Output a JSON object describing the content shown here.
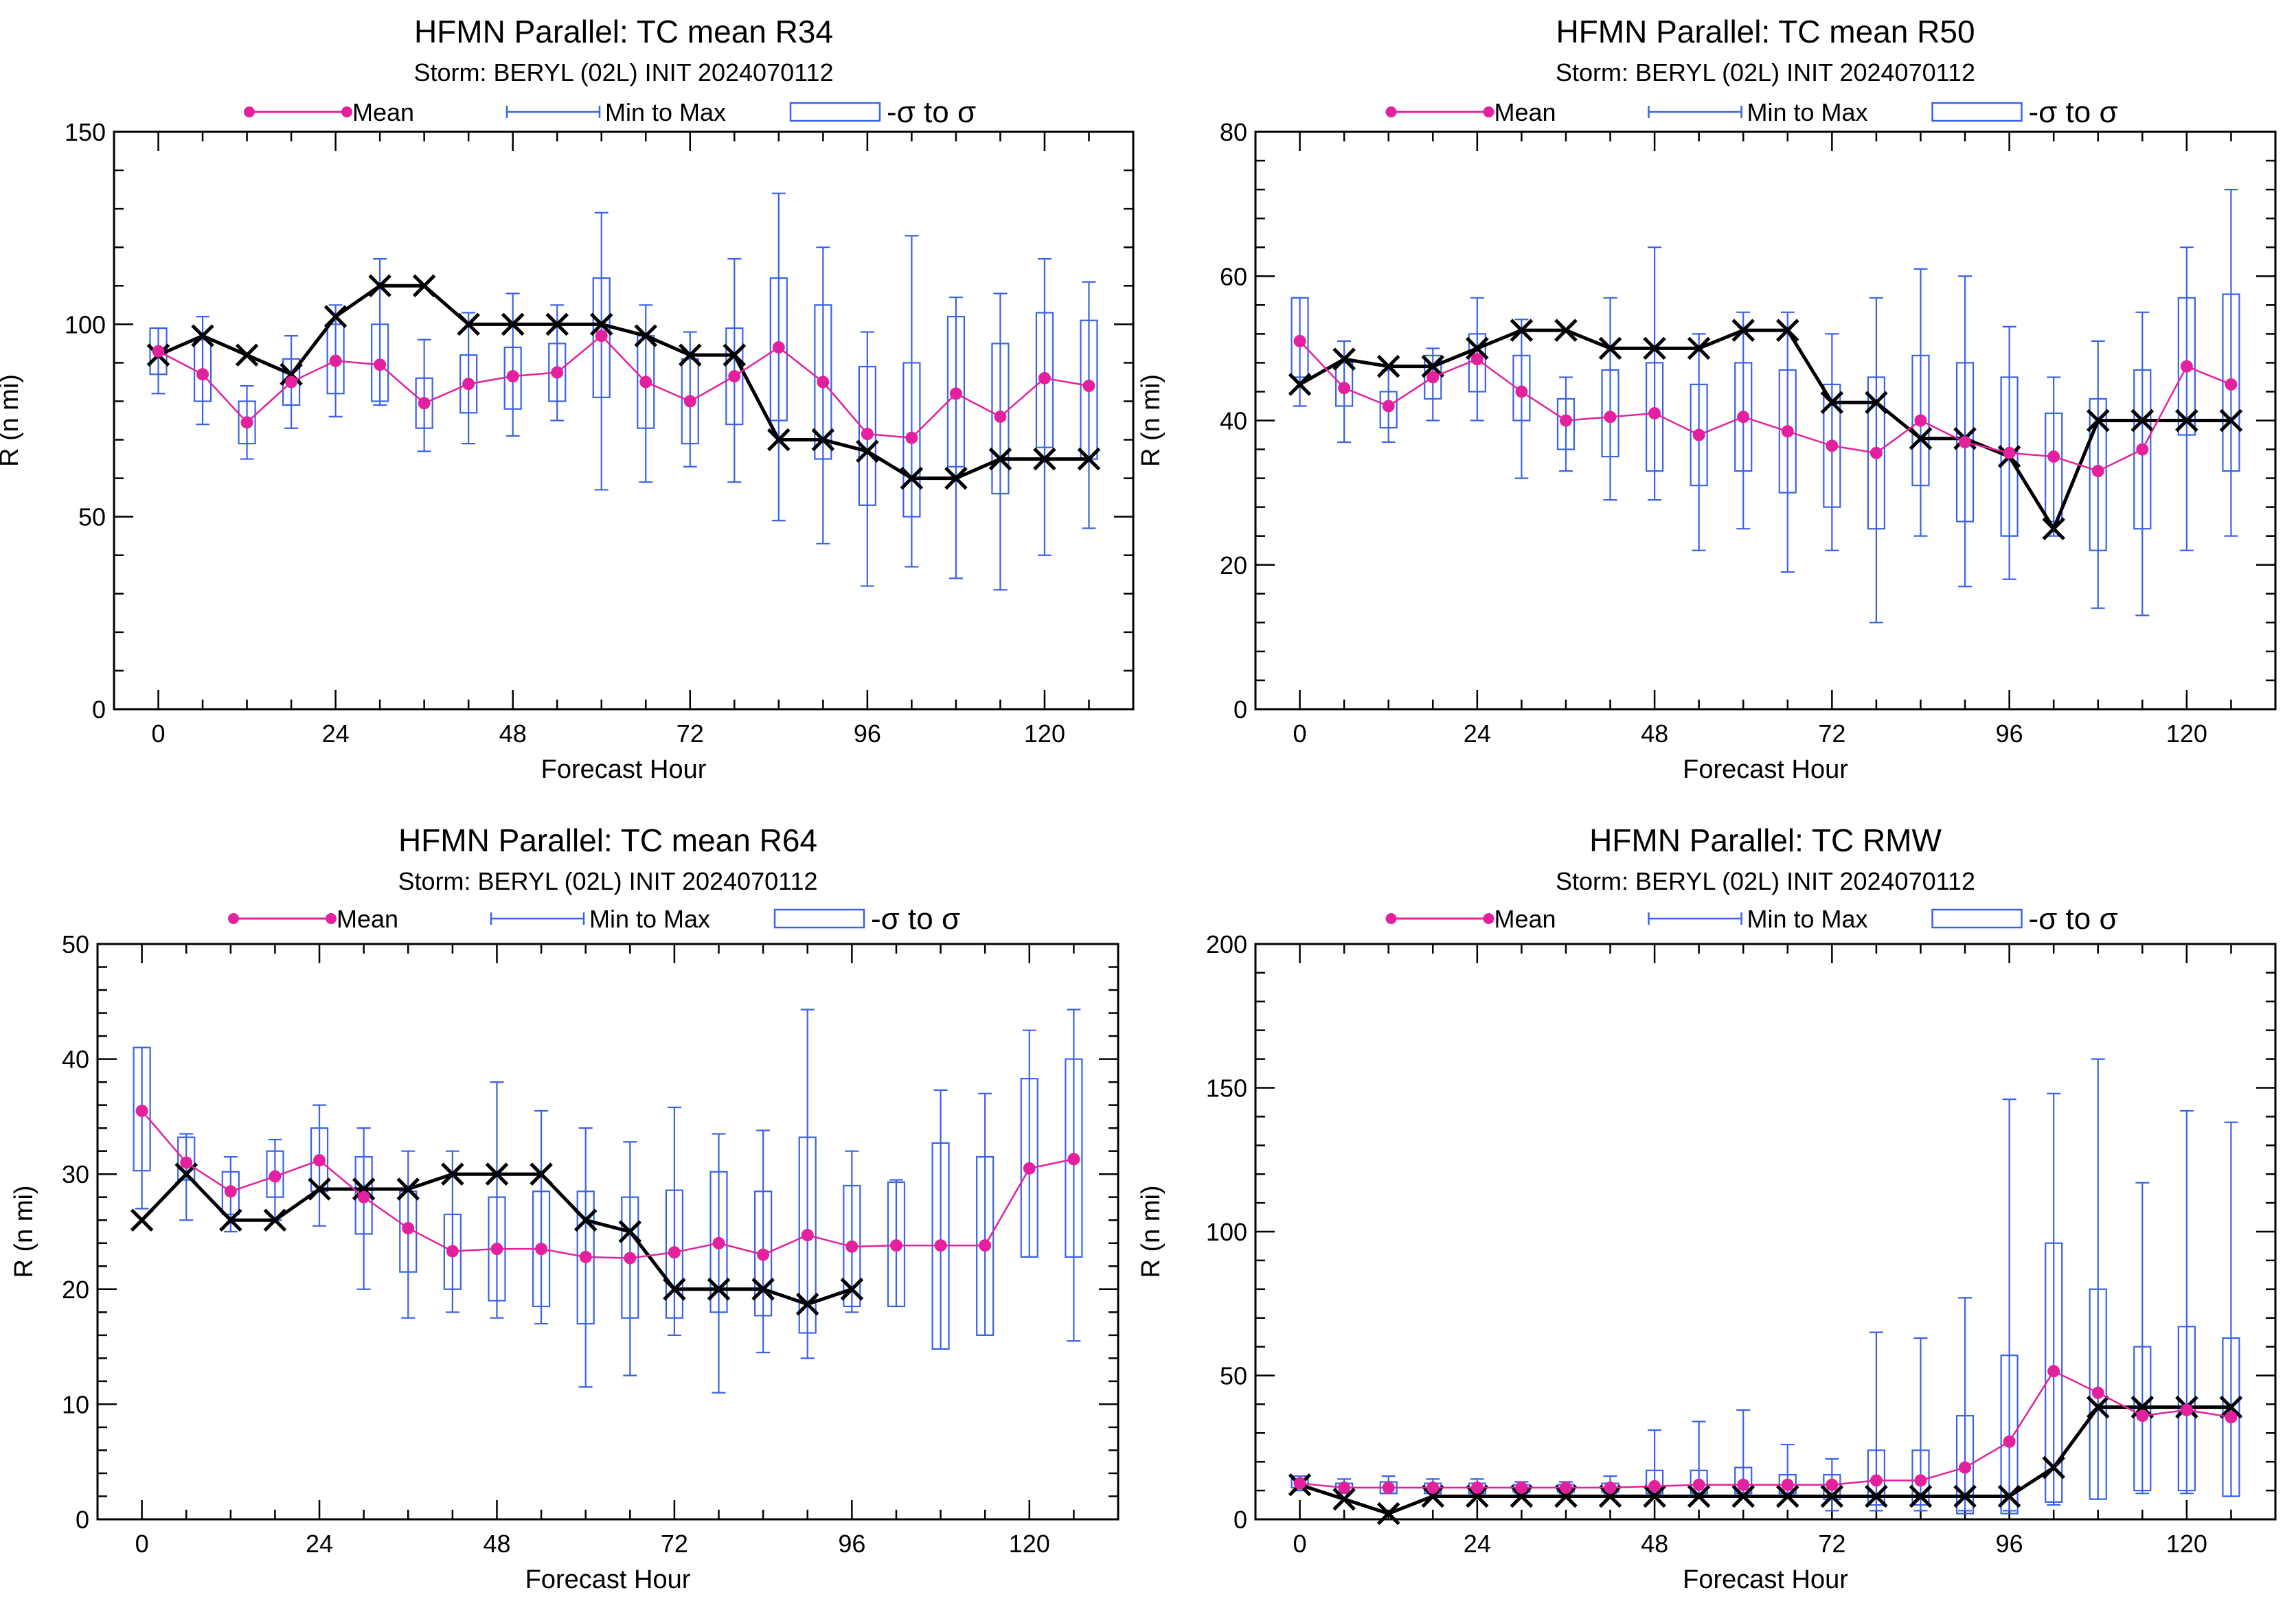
{
  "legend": {
    "mean": "Mean",
    "minmax": "Min to Max",
    "sigma": "-σ to σ"
  },
  "colors": {
    "mean": "#e3219e",
    "box": "#3a62e8",
    "actual": "#000000"
  },
  "chart_data": [
    {
      "type": "box",
      "title": "HFMN Parallel: TC mean R34",
      "subtitle": "Storm: BERYL (02L) INIT 2024070112",
      "xlabel": "Forecast Hour",
      "ylabel": "R (n mi)",
      "xlim": [
        -6,
        132
      ],
      "ylim": [
        0,
        150
      ],
      "xticks": [
        0,
        24,
        48,
        72,
        96,
        120
      ],
      "yticks": [
        0,
        50,
        100,
        150
      ],
      "x": [
        0,
        6,
        12,
        18,
        24,
        30,
        36,
        42,
        48,
        54,
        60,
        66,
        72,
        78,
        84,
        90,
        96,
        102,
        108,
        114,
        120,
        126
      ],
      "mean": [
        93,
        87,
        74.5,
        85,
        90.5,
        89.5,
        79.5,
        84.5,
        86.5,
        87.5,
        97,
        85,
        80,
        86.5,
        94,
        85,
        71.5,
        70.5,
        82,
        76,
        86,
        84
      ],
      "min": [
        82,
        74,
        65,
        73,
        76,
        79,
        67,
        69,
        71,
        75,
        57,
        59,
        63,
        59,
        49,
        43,
        32,
        37,
        34,
        31,
        40,
        47
      ],
      "max": [
        99,
        102,
        84,
        97,
        105,
        117,
        96,
        103,
        108,
        105,
        129,
        105,
        98,
        117,
        134,
        120,
        98,
        123,
        107,
        108,
        117,
        111
      ],
      "box_lo": [
        87,
        80,
        69,
        79,
        82,
        80,
        73,
        77,
        78,
        80,
        81,
        73,
        69,
        74,
        75,
        65,
        53,
        50,
        63,
        56,
        68,
        65
      ],
      "box_hi": [
        99,
        96,
        80,
        91,
        100,
        100,
        86,
        92,
        94,
        95,
        112,
        97,
        91,
        99,
        112,
        105,
        89,
        90,
        102,
        95,
        103,
        101
      ],
      "actual_x": [
        0,
        6,
        12,
        18,
        24,
        30,
        36,
        42,
        48,
        54,
        60,
        66,
        72,
        78,
        84,
        90,
        96,
        102,
        108,
        114,
        120,
        126
      ],
      "actual": [
        92,
        97,
        92,
        87,
        102,
        110,
        110,
        100,
        100,
        100,
        100,
        97,
        92,
        92,
        70,
        70,
        67,
        60,
        60,
        65,
        65,
        65
      ]
    },
    {
      "type": "box",
      "title": "HFMN Parallel: TC mean R50",
      "subtitle": "Storm: BERYL (02L) INIT 2024070112",
      "xlabel": "Forecast Hour",
      "ylabel": "R (n mi)",
      "xlim": [
        -6,
        132
      ],
      "ylim": [
        0,
        80
      ],
      "xticks": [
        0,
        24,
        48,
        72,
        96,
        120
      ],
      "yticks": [
        0,
        20,
        40,
        60,
        80
      ],
      "x": [
        0,
        6,
        12,
        18,
        24,
        30,
        36,
        42,
        48,
        54,
        60,
        66,
        72,
        78,
        84,
        90,
        96,
        102,
        108,
        114,
        120,
        126
      ],
      "mean": [
        51,
        44.5,
        42,
        46,
        48.5,
        44,
        40,
        40.5,
        41,
        38,
        40.5,
        38.5,
        36.5,
        35.5,
        40,
        37,
        35.5,
        35,
        33,
        36,
        47.5,
        45
      ],
      "min": [
        42,
        37,
        37,
        40,
        40,
        32,
        33,
        29,
        29,
        22,
        25,
        19,
        22,
        12,
        24,
        17,
        18,
        24,
        14,
        13,
        22,
        24
      ],
      "max": [
        57,
        51,
        47,
        50,
        57,
        54,
        46,
        57,
        64,
        52,
        55,
        55,
        52,
        57,
        61,
        60,
        53,
        46,
        51,
        55,
        64,
        72
      ],
      "box_lo": [
        46,
        42,
        39,
        43,
        44,
        40,
        36,
        35,
        33,
        31,
        33,
        30,
        28,
        25,
        31,
        26,
        24,
        26,
        22,
        25,
        38,
        33
      ],
      "box_hi": [
        57,
        48,
        44,
        49,
        52,
        49,
        43,
        47,
        48,
        45,
        48,
        47,
        45,
        46,
        49,
        48,
        46,
        41,
        43,
        47,
        57,
        57.5
      ],
      "actual_x": [
        0,
        6,
        12,
        18,
        24,
        30,
        36,
        42,
        48,
        54,
        60,
        66,
        72,
        78,
        84,
        90,
        96,
        102,
        108,
        114,
        120,
        126
      ],
      "actual": [
        45,
        48.5,
        47.5,
        47.5,
        50,
        52.5,
        52.5,
        50,
        50,
        50,
        52.5,
        52.5,
        42.5,
        42.5,
        37.5,
        37.5,
        35,
        25,
        40,
        40,
        40,
        40
      ]
    },
    {
      "type": "box",
      "title": "HFMN Parallel: TC mean R64",
      "subtitle": "Storm: BERYL (02L) INIT 2024070112",
      "xlabel": "Forecast Hour",
      "ylabel": "R (n mi)",
      "xlim": [
        -6,
        132
      ],
      "ylim": [
        0,
        50
      ],
      "xticks": [
        0,
        24,
        48,
        72,
        96,
        120
      ],
      "yticks": [
        0,
        10,
        20,
        30,
        40,
        50
      ],
      "x": [
        0,
        6,
        12,
        18,
        24,
        30,
        36,
        42,
        48,
        54,
        60,
        66,
        72,
        78,
        84,
        90,
        96,
        102,
        108,
        114,
        120,
        126
      ],
      "mean": [
        35.5,
        31,
        28.5,
        29.8,
        31.2,
        28,
        25.3,
        23.3,
        23.5,
        23.5,
        22.8,
        22.7,
        23.2,
        24,
        23,
        24.7,
        23.7,
        23.8,
        23.8,
        23.8,
        30.5,
        31.3
      ],
      "min": [
        27,
        26,
        25,
        26,
        25.5,
        20,
        17.5,
        18,
        17.5,
        17,
        11.5,
        12.5,
        16,
        11,
        14.5,
        14,
        18,
        18.5,
        14.8,
        16,
        22.8,
        15.5
      ],
      "max": [
        41,
        33.5,
        31.5,
        33,
        36,
        34,
        32,
        32,
        38,
        35.5,
        34,
        32.8,
        35.8,
        33.5,
        33.8,
        44.3,
        32,
        29.5,
        37.3,
        37,
        42.5,
        44.3
      ],
      "box_lo": [
        30.3,
        29.5,
        26.5,
        28,
        28.5,
        24.8,
        21.5,
        20,
        19,
        18.5,
        17,
        17.5,
        17.5,
        18,
        17.7,
        16.2,
        18.5,
        18.5,
        14.8,
        16,
        22.8,
        22.8
      ],
      "box_hi": [
        41,
        33.2,
        30.2,
        32,
        34,
        31.5,
        28.5,
        26.5,
        28,
        28.5,
        28.5,
        28,
        28.6,
        30.2,
        28.5,
        33.2,
        29,
        29.3,
        32.7,
        31.5,
        38.3,
        40
      ],
      "actual_x": [
        0,
        6,
        12,
        18,
        24,
        30,
        36,
        42,
        48,
        54,
        60,
        66,
        72,
        78,
        84,
        90,
        96
      ],
      "actual": [
        26,
        30,
        26,
        26,
        28.7,
        28.7,
        28.7,
        30,
        30,
        30,
        26,
        25,
        20,
        20,
        20,
        18.7,
        20
      ]
    },
    {
      "type": "box",
      "title": "HFMN Parallel: TC RMW",
      "subtitle": "Storm: BERYL (02L) INIT 2024070112",
      "xlabel": "Forecast Hour",
      "ylabel": "R (n mi)",
      "xlim": [
        -6,
        132
      ],
      "ylim": [
        0,
        200
      ],
      "xticks": [
        0,
        24,
        48,
        72,
        96,
        120
      ],
      "yticks": [
        0,
        50,
        100,
        150,
        200
      ],
      "x": [
        0,
        6,
        12,
        18,
        24,
        30,
        36,
        42,
        48,
        54,
        60,
        66,
        72,
        78,
        84,
        90,
        96,
        102,
        108,
        114,
        120,
        126
      ],
      "mean": [
        12.5,
        11,
        11,
        11,
        11,
        11,
        11,
        11,
        11.5,
        12,
        12,
        12,
        12,
        13.5,
        13.5,
        18,
        27,
        51.5,
        44,
        36,
        38,
        35.5
      ],
      "min": [
        10,
        9,
        9,
        9,
        9,
        9,
        9,
        9,
        9,
        9,
        8,
        8,
        3,
        3,
        3,
        3,
        3,
        5,
        7,
        9,
        9,
        8
      ],
      "max": [
        15,
        14,
        15,
        14,
        14,
        13,
        13,
        15,
        31,
        34,
        38,
        26,
        21,
        65,
        63,
        77,
        146,
        148,
        160,
        117,
        142,
        138
      ],
      "box_lo": [
        11,
        9.5,
        9,
        9,
        9,
        9.5,
        9.5,
        9.5,
        9,
        9,
        9,
        9,
        7,
        5,
        5,
        2,
        2,
        6,
        7,
        10,
        10,
        8
      ],
      "box_hi": [
        14,
        12.5,
        13,
        12.5,
        12.5,
        12,
        12,
        12.5,
        17,
        17,
        18,
        15.5,
        15.5,
        24,
        24,
        36,
        57,
        96,
        80,
        60,
        67,
        63
      ],
      "actual_x": [
        0,
        6,
        12,
        18,
        24,
        30,
        36,
        42,
        48,
        54,
        60,
        66,
        72,
        78,
        84,
        90,
        96,
        102,
        108,
        114,
        120,
        126
      ],
      "actual": [
        12,
        7,
        2,
        8,
        8,
        8,
        8,
        8,
        8,
        8,
        8,
        8,
        8,
        8,
        8,
        8,
        8,
        18,
        39,
        39,
        39,
        39
      ]
    }
  ]
}
